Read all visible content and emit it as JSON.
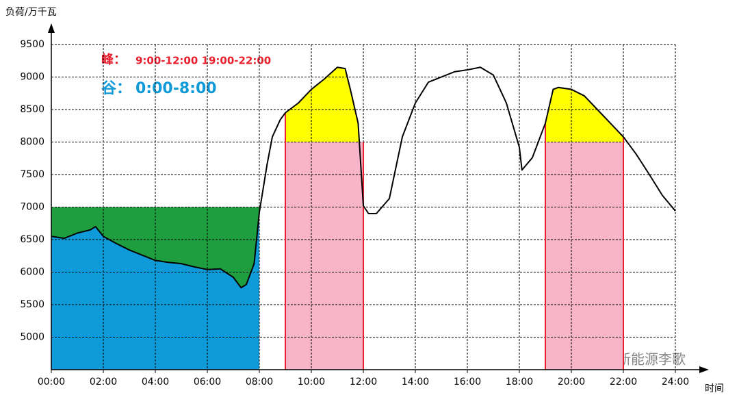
{
  "chart_data": {
    "type": "line",
    "y_label": "负荷/万千瓦",
    "x_label": "时间",
    "peak_label": "峰：",
    "peak_text": "9:00-12:00 19:00-22:00",
    "peak_color": "#e8202e",
    "valley_label": "谷：",
    "valley_text": "0:00-8:00",
    "valley_color": "#119ad8",
    "watermark": "新能源李歌",
    "x": [
      0,
      0.5,
      1,
      1.5,
      1.7,
      2,
      2.5,
      3,
      3.5,
      4,
      4.5,
      5,
      5.5,
      6,
      6.5,
      7,
      7.3,
      7.5,
      7.8,
      8,
      8.3,
      8.5,
      8.8,
      9,
      9.5,
      10,
      10.5,
      11,
      11.3,
      11.5,
      11.8,
      12,
      12.2,
      12.5,
      13,
      13.5,
      14,
      14.5,
      15,
      15.5,
      16,
      16.5,
      17,
      17.5,
      18,
      18.1,
      18.5,
      19,
      19.3,
      19.5,
      20,
      20.5,
      21,
      21.5,
      22,
      22.5,
      23,
      23.5,
      24
    ],
    "series": [
      {
        "color": "#000000",
        "values": [
          6550,
          6520,
          6600,
          6650,
          6700,
          6550,
          6440,
          6340,
          6260,
          6180,
          6150,
          6130,
          6080,
          6040,
          6050,
          5920,
          5760,
          5810,
          6130,
          6920,
          7660,
          8080,
          8340,
          8450,
          8600,
          8810,
          8970,
          9150,
          9130,
          8810,
          8290,
          7020,
          6900,
          6900,
          7130,
          8080,
          8600,
          8920,
          9000,
          9080,
          9110,
          9150,
          9030,
          8600,
          7920,
          7570,
          7760,
          8290,
          8810,
          8840,
          8810,
          8710,
          8500,
          8290,
          8080,
          7810,
          7500,
          7180,
          6940
        ]
      }
    ],
    "valley_period": [
      0,
      8
    ],
    "valley_level": 7000,
    "valley_fill": "#0f9ad9",
    "valley_gap_fill": "#1f9e3f",
    "peak_periods": [
      [
        9,
        12
      ],
      [
        19,
        22
      ]
    ],
    "peak_level": 8000,
    "peak_fill": "#f8b5c9",
    "peak_gap_fill": "#ffff00",
    "peak_edge_color": "#e8202e",
    "xlim": [
      0,
      24
    ],
    "ylim": [
      4500,
      9800
    ],
    "xticks": [
      {
        "value": 0,
        "label": "00:00"
      },
      {
        "value": 2,
        "label": "02:00"
      },
      {
        "value": 4,
        "label": "04:00"
      },
      {
        "value": 6,
        "label": "06:00"
      },
      {
        "value": 8,
        "label": "08:00"
      },
      {
        "value": 10,
        "label": "10:00"
      },
      {
        "value": 12,
        "label": "12:00"
      },
      {
        "value": 14,
        "label": "14:00"
      },
      {
        "value": 16,
        "label": "16:00"
      },
      {
        "value": 18,
        "label": "18:00"
      },
      {
        "value": 20,
        "label": "20:00"
      },
      {
        "value": 22,
        "label": "22:00"
      },
      {
        "value": 24,
        "label": "24:00"
      }
    ],
    "yticks": [
      5000,
      5500,
      6000,
      6500,
      7000,
      7500,
      8000,
      8500,
      9000,
      9500
    ],
    "grid": true
  }
}
